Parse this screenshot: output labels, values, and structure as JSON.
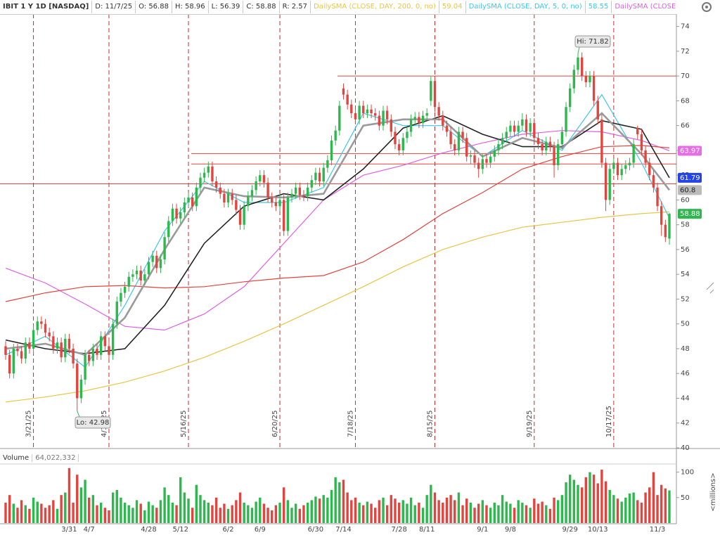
{
  "chart_data": {
    "type": "candlestick",
    "symbol": "IBIT 1 Y 1D [NASDAQ]",
    "readouts": [
      "D: 11/7/25",
      "O: 56.88",
      "H: 58.96",
      "L: 56.39",
      "C: 58.88",
      "R: 2.57"
    ],
    "up_color": "#2db84d",
    "down_color": "#e0453f",
    "ylim": [
      40,
      75
    ],
    "yticks": [
      40,
      42,
      44,
      46,
      48,
      50,
      52,
      54,
      56,
      58,
      60,
      62,
      64,
      66,
      68,
      70,
      72,
      74
    ],
    "xticks": [
      {
        "value": 7,
        "label": "3/21/25"
      },
      {
        "value": 26,
        "label": "4/17/25"
      },
      {
        "value": 46,
        "label": "5/16/25"
      },
      {
        "value": 69,
        "label": "6/20/25"
      },
      {
        "value": 88,
        "label": "7/18/25"
      },
      {
        "value": 108,
        "label": "8/15/25"
      },
      {
        "value": 133,
        "label": "9/19/25"
      },
      {
        "value": 153,
        "label": "10/17/25"
      }
    ],
    "hlines": [
      70,
      63.75,
      62.9,
      61.3
    ],
    "hline_color": "#e0453f",
    "price_labels": [
      {
        "value": 63.97,
        "color": "#e56ee5"
      },
      {
        "value": 61.79,
        "color": "#2444e8"
      },
      {
        "value": 60.8,
        "color": "#bbbbbb"
      },
      {
        "value": 58.88,
        "color": "#2db84d"
      }
    ],
    "annotations": [
      "Hi: 71.82",
      "Lo: 42.98"
    ],
    "ohlc": [
      [
        48.2,
        48.6,
        47.1,
        47.5
      ],
      [
        47.5,
        47.9,
        45.6,
        46.0
      ],
      [
        46.0,
        48.4,
        45.6,
        48.0
      ],
      [
        48.0,
        48.4,
        47.4,
        47.8
      ],
      [
        47.8,
        48.2,
        46.8,
        47.2
      ],
      [
        47.2,
        48.9,
        46.8,
        48.5
      ],
      [
        48.5,
        48.9,
        47.6,
        48.0
      ],
      [
        48.0,
        49.9,
        47.6,
        49.5
      ],
      [
        49.5,
        50.6,
        49.1,
        50.2
      ],
      [
        50.2,
        50.6,
        49.6,
        50.0
      ],
      [
        50.0,
        50.4,
        48.9,
        49.3
      ],
      [
        49.3,
        49.7,
        48.6,
        49.0
      ],
      [
        49.0,
        49.4,
        47.6,
        48.0
      ],
      [
        48.0,
        48.9,
        47.6,
        48.5
      ],
      [
        48.5,
        48.9,
        46.9,
        47.3
      ],
      [
        47.3,
        49.2,
        46.9,
        48.8
      ],
      [
        48.8,
        49.2,
        47.6,
        48.0
      ],
      [
        48.0,
        48.4,
        46.4,
        46.8
      ],
      [
        46.8,
        47.2,
        42.98,
        44.0
      ],
      [
        44.0,
        45.9,
        43.6,
        45.5
      ],
      [
        45.5,
        47.9,
        45.1,
        47.5
      ],
      [
        47.5,
        47.9,
        46.6,
        47.0
      ],
      [
        47.0,
        48.4,
        46.6,
        48.0
      ],
      [
        48.0,
        48.4,
        47.1,
        47.5
      ],
      [
        47.5,
        49.4,
        47.1,
        49.0
      ],
      [
        49.0,
        49.4,
        47.8,
        48.2
      ],
      [
        48.2,
        48.6,
        47.1,
        47.5
      ],
      [
        47.5,
        50.4,
        47.1,
        50.0
      ],
      [
        50.0,
        52.2,
        49.6,
        51.8
      ],
      [
        51.8,
        52.9,
        51.4,
        52.5
      ],
      [
        52.5,
        53.4,
        52.1,
        53.0
      ],
      [
        53.0,
        54.2,
        52.6,
        53.8
      ],
      [
        53.8,
        54.4,
        53.4,
        54.0
      ],
      [
        54.0,
        54.7,
        53.6,
        54.3
      ],
      [
        54.3,
        54.7,
        53.1,
        53.5
      ],
      [
        53.5,
        54.4,
        53.1,
        54.0
      ],
      [
        54.0,
        55.4,
        53.6,
        55.0
      ],
      [
        55.0,
        55.9,
        54.6,
        55.5
      ],
      [
        55.5,
        55.9,
        54.1,
        54.5
      ],
      [
        54.5,
        55.6,
        54.1,
        55.2
      ],
      [
        55.2,
        57.4,
        54.8,
        57.0
      ],
      [
        57.0,
        58.7,
        56.6,
        58.3
      ],
      [
        58.3,
        59.7,
        57.9,
        59.3
      ],
      [
        59.3,
        59.7,
        58.1,
        58.5
      ],
      [
        58.5,
        59.4,
        58.1,
        59.0
      ],
      [
        59.0,
        60.2,
        58.6,
        59.8
      ],
      [
        59.8,
        60.6,
        59.4,
        60.2
      ],
      [
        60.2,
        60.6,
        59.1,
        59.5
      ],
      [
        59.5,
        61.4,
        59.1,
        61.0
      ],
      [
        61.0,
        62.2,
        60.6,
        61.8
      ],
      [
        61.8,
        62.6,
        61.4,
        62.2
      ],
      [
        62.2,
        63.1,
        61.8,
        62.7
      ],
      [
        62.7,
        63.1,
        61.1,
        61.5
      ],
      [
        61.5,
        61.9,
        60.6,
        61.0
      ],
      [
        61.0,
        61.4,
        60.1,
        60.5
      ],
      [
        60.5,
        60.9,
        59.4,
        59.8
      ],
      [
        59.8,
        60.9,
        59.4,
        60.5
      ],
      [
        60.5,
        60.9,
        59.6,
        60.0
      ],
      [
        60.0,
        60.4,
        58.8,
        59.2
      ],
      [
        59.2,
        59.6,
        57.6,
        58.0
      ],
      [
        58.0,
        59.9,
        57.6,
        59.5
      ],
      [
        59.5,
        60.7,
        59.1,
        60.3
      ],
      [
        60.3,
        61.2,
        59.9,
        60.8
      ],
      [
        60.8,
        61.9,
        60.4,
        61.5
      ],
      [
        61.5,
        62.4,
        61.1,
        62.0
      ],
      [
        62.0,
        62.4,
        61.0,
        61.4
      ],
      [
        61.4,
        61.8,
        59.8,
        60.2
      ],
      [
        60.2,
        60.6,
        59.4,
        59.8
      ],
      [
        59.8,
        60.2,
        59.1,
        59.5
      ],
      [
        59.5,
        60.4,
        59.1,
        60.0
      ],
      [
        60.0,
        60.4,
        57.1,
        57.5
      ],
      [
        57.5,
        60.6,
        57.1,
        60.2
      ],
      [
        60.2,
        60.9,
        59.8,
        60.5
      ],
      [
        60.5,
        61.4,
        60.1,
        61.0
      ],
      [
        61.0,
        61.4,
        60.0,
        60.4
      ],
      [
        60.4,
        60.8,
        59.9,
        60.3
      ],
      [
        60.3,
        61.4,
        59.9,
        61.0
      ],
      [
        61.0,
        62.0,
        60.6,
        61.6
      ],
      [
        61.6,
        62.6,
        61.2,
        62.2
      ],
      [
        62.2,
        62.6,
        61.1,
        61.5
      ],
      [
        61.5,
        63.0,
        61.1,
        62.6
      ],
      [
        62.6,
        63.6,
        62.2,
        63.2
      ],
      [
        63.2,
        65.2,
        62.8,
        64.8
      ],
      [
        64.8,
        66.0,
        64.4,
        65.6
      ],
      [
        65.6,
        68.0,
        65.2,
        67.6
      ],
      [
        69.0,
        69.4,
        68.1,
        68.5
      ],
      [
        68.5,
        68.9,
        67.3,
        67.7
      ],
      [
        67.7,
        68.1,
        66.6,
        67.0
      ],
      [
        67.0,
        67.4,
        66.1,
        66.5
      ],
      [
        66.5,
        68.0,
        66.1,
        67.6
      ],
      [
        67.6,
        68.0,
        66.6,
        67.0
      ],
      [
        67.0,
        67.7,
        66.6,
        67.3
      ],
      [
        67.3,
        67.7,
        66.6,
        67.0
      ],
      [
        67.0,
        67.4,
        66.4,
        66.8
      ],
      [
        66.8,
        67.2,
        65.6,
        66.0
      ],
      [
        66.0,
        67.6,
        65.6,
        67.2
      ],
      [
        67.2,
        67.6,
        66.1,
        66.5
      ],
      [
        66.5,
        66.9,
        65.1,
        65.5
      ],
      [
        65.5,
        65.9,
        64.1,
        64.5
      ],
      [
        64.5,
        64.9,
        63.6,
        64.0
      ],
      [
        64.0,
        65.4,
        63.6,
        65.0
      ],
      [
        65.0,
        65.9,
        64.6,
        65.5
      ],
      [
        65.5,
        66.9,
        65.1,
        66.5
      ],
      [
        66.5,
        67.1,
        66.1,
        66.7
      ],
      [
        66.7,
        67.1,
        65.8,
        66.2
      ],
      [
        66.2,
        67.2,
        65.8,
        66.8
      ],
      [
        66.8,
        67.4,
        66.4,
        67.0
      ],
      [
        68.0,
        70.0,
        67.6,
        69.6
      ],
      [
        69.6,
        70.0,
        67.1,
        67.5
      ],
      [
        67.5,
        67.9,
        66.4,
        66.8
      ],
      [
        66.8,
        67.2,
        65.6,
        66.0
      ],
      [
        66.0,
        66.4,
        65.1,
        65.5
      ],
      [
        65.5,
        65.9,
        64.1,
        64.5
      ],
      [
        64.5,
        64.9,
        63.6,
        64.0
      ],
      [
        64.0,
        65.9,
        63.6,
        65.5
      ],
      [
        65.5,
        65.9,
        64.6,
        65.0
      ],
      [
        65.0,
        65.4,
        63.1,
        63.5
      ],
      [
        63.5,
        64.0,
        62.9,
        63.6
      ],
      [
        63.6,
        64.0,
        62.6,
        63.0
      ],
      [
        63.0,
        63.4,
        61.8,
        62.5
      ],
      [
        62.5,
        63.7,
        62.1,
        63.3
      ],
      [
        63.3,
        63.7,
        62.6,
        63.0
      ],
      [
        63.0,
        63.9,
        62.6,
        63.5
      ],
      [
        63.5,
        64.4,
        63.1,
        64.0
      ],
      [
        64.0,
        64.9,
        63.6,
        64.5
      ],
      [
        64.5,
        65.4,
        64.1,
        65.0
      ],
      [
        65.0,
        65.9,
        64.6,
        65.5
      ],
      [
        65.5,
        66.4,
        65.1,
        66.0
      ],
      [
        66.0,
        66.4,
        65.1,
        65.5
      ],
      [
        65.5,
        66.4,
        65.1,
        66.0
      ],
      [
        66.0,
        67.0,
        65.6,
        66.5
      ],
      [
        66.5,
        66.9,
        65.1,
        65.5
      ],
      [
        65.5,
        66.6,
        65.1,
        66.2
      ],
      [
        66.2,
        66.6,
        64.6,
        65.0
      ],
      [
        65.0,
        65.4,
        64.1,
        64.5
      ],
      [
        64.5,
        64.9,
        63.6,
        64.0
      ],
      [
        64.0,
        65.1,
        63.6,
        64.7
      ],
      [
        64.7,
        65.1,
        63.9,
        64.3
      ],
      [
        64.3,
        64.7,
        61.8,
        62.8
      ],
      [
        62.8,
        64.9,
        62.4,
        64.5
      ],
      [
        64.5,
        65.9,
        64.1,
        65.5
      ],
      [
        65.5,
        67.9,
        65.1,
        67.5
      ],
      [
        67.5,
        69.4,
        67.1,
        69.0
      ],
      [
        69.0,
        70.9,
        68.6,
        70.5
      ],
      [
        70.5,
        71.82,
        70.1,
        71.5
      ],
      [
        71.5,
        71.9,
        69.6,
        70.0
      ],
      [
        70.0,
        70.4,
        69.1,
        69.5
      ],
      [
        69.5,
        70.4,
        69.1,
        70.0
      ],
      [
        70.0,
        70.4,
        67.6,
        68.0
      ],
      [
        68.0,
        68.4,
        66.1,
        66.5
      ],
      [
        66.5,
        66.9,
        62.6,
        63.0
      ],
      [
        63.0,
        63.4,
        59.1,
        60.0
      ],
      [
        60.0,
        62.9,
        59.6,
        62.5
      ],
      [
        62.5,
        63.4,
        62.1,
        63.0
      ],
      [
        63.0,
        63.4,
        61.6,
        62.0
      ],
      [
        62.0,
        62.9,
        61.6,
        62.5
      ],
      [
        62.5,
        63.2,
        62.1,
        62.8
      ],
      [
        62.8,
        63.4,
        62.4,
        63.0
      ],
      [
        63.0,
        64.9,
        62.6,
        64.5
      ],
      [
        65.8,
        66.0,
        64.9,
        65.3
      ],
      [
        65.3,
        65.7,
        63.6,
        64.0
      ],
      [
        64.0,
        64.4,
        62.6,
        63.0
      ],
      [
        63.0,
        63.4,
        61.6,
        62.0
      ],
      [
        62.0,
        62.4,
        60.6,
        61.0
      ],
      [
        61.0,
        61.4,
        59.1,
        59.5
      ],
      [
        59.5,
        59.9,
        57.1,
        58.0
      ],
      [
        58.0,
        58.4,
        56.6,
        57.0
      ],
      [
        56.88,
        58.96,
        56.39,
        58.88
      ]
    ],
    "x": [
      0,
      10,
      20,
      30,
      40,
      50,
      60,
      70,
      80,
      90,
      100,
      110,
      120,
      130,
      140,
      150,
      160,
      167
    ],
    "series": [
      {
        "name": "DailySMA (CLOSE, DAY, 200, 0, no)",
        "readout": 59.04,
        "color": "#e8c547",
        "width": 1.2,
        "values": [
          43.7,
          44.1,
          44.6,
          45.3,
          46.2,
          47.3,
          48.6,
          50.0,
          51.5,
          53.0,
          54.6,
          56.0,
          57.0,
          57.8,
          58.2,
          58.6,
          58.9,
          59.04
        ]
      },
      {
        "name": "DailySMA (CLOSE, DAY, 5, 0, no)",
        "readout": 58.55,
        "color": "#3cc8e8",
        "width": 1.2,
        "values": [
          47.5,
          49.0,
          46.5,
          51.5,
          57.5,
          61.5,
          59.8,
          59.8,
          61.0,
          67.0,
          66.0,
          66.0,
          63.5,
          65.6,
          64.0,
          68.5,
          63.0,
          58.55
        ]
      },
      {
        "name": "DailySMA (CLOSE,...",
        "color": "#e060e0",
        "width": 1.2,
        "values": [
          54.5,
          53.3,
          51.6,
          49.8,
          49.5,
          50.8,
          53.0,
          56.5,
          60.0,
          62.0,
          62.8,
          63.8,
          64.6,
          65.3,
          65.6,
          65.5,
          64.8,
          63.97
        ]
      },
      {
        "color": "#e0453f",
        "width": 1.2,
        "values": [
          51.8,
          52.5,
          53.0,
          53.1,
          52.9,
          53.0,
          53.4,
          53.7,
          53.9,
          55.0,
          56.8,
          58.9,
          60.6,
          62.5,
          63.5,
          64.3,
          64.4,
          64.2
        ]
      },
      {
        "color": "#222222",
        "width": 1.6,
        "values": [
          48.7,
          48.0,
          47.6,
          48.0,
          51.5,
          56.5,
          59.5,
          60.5,
          60.0,
          62.5,
          65.8,
          66.8,
          65.3,
          64.3,
          64.3,
          66.4,
          65.7,
          61.79
        ]
      },
      {
        "color": "#9a9a9a",
        "width": 2.6,
        "values": [
          48.0,
          48.4,
          47.5,
          50.5,
          56.0,
          61.0,
          60.3,
          60.2,
          60.5,
          66.0,
          66.5,
          66.5,
          63.5,
          65.0,
          64.2,
          67.0,
          63.7,
          60.8
        ]
      }
    ],
    "volume": {
      "title": "Volume",
      "readout": "64,022,332",
      "unit": "<millions>",
      "ylim": [
        0,
        116
      ],
      "yticks": [
        50,
        100
      ],
      "xticks": [
        {
          "value": 16,
          "label": "3/31"
        },
        {
          "value": 21,
          "label": "4/7"
        },
        {
          "value": 36,
          "label": "4/28"
        },
        {
          "value": 44,
          "label": "5/12"
        },
        {
          "value": 56,
          "label": "6/2"
        },
        {
          "value": 64,
          "label": "6/9"
        },
        {
          "value": 78,
          "label": "6/30"
        },
        {
          "value": 85,
          "label": "7/14"
        },
        {
          "value": 99,
          "label": "7/28"
        },
        {
          "value": 106,
          "label": "8/11"
        },
        {
          "value": 120,
          "label": "9/1"
        },
        {
          "value": 127,
          "label": "9/8"
        },
        {
          "value": 142,
          "label": "9/29"
        },
        {
          "value": 149,
          "label": "10/13"
        },
        {
          "value": 164,
          "label": "11/3"
        }
      ],
      "values": [
        40,
        55,
        38,
        30,
        45,
        35,
        28,
        50,
        42,
        38,
        30,
        35,
        45,
        28,
        55,
        60,
        108,
        40,
        95,
        70,
        85,
        50,
        55,
        35,
        40,
        30,
        25,
        60,
        65,
        50,
        40,
        35,
        30,
        45,
        38,
        25,
        42,
        35,
        30,
        45,
        70,
        55,
        40,
        35,
        90,
        60,
        48,
        30,
        75,
        55,
        45,
        40,
        35,
        50,
        30,
        38,
        28,
        35,
        45,
        60,
        40,
        35,
        30,
        42,
        50,
        38,
        30,
        25,
        35,
        40,
        70,
        45,
        30,
        38,
        28,
        35,
        40,
        45,
        52,
        48,
        55,
        50,
        65,
        90,
        80,
        85,
        60,
        45,
        50,
        40,
        35,
        42,
        38,
        30,
        45,
        50,
        35,
        55,
        48,
        40,
        45,
        38,
        50,
        35,
        40,
        30,
        55,
        75,
        60,
        45,
        40,
        50,
        55,
        45,
        60,
        35,
        48,
        40,
        30,
        38,
        45,
        35,
        30,
        40,
        35,
        55,
        42,
        38,
        30,
        45,
        40,
        35,
        30,
        48,
        38,
        42,
        35,
        28,
        50,
        45,
        55,
        80,
        95,
        85,
        75,
        70,
        90,
        100,
        95,
        78,
        105,
        82,
        65,
        55,
        48,
        42,
        50,
        58,
        60,
        45,
        40,
        60,
        70,
        100,
        55,
        75,
        68,
        64.022332
      ]
    }
  }
}
